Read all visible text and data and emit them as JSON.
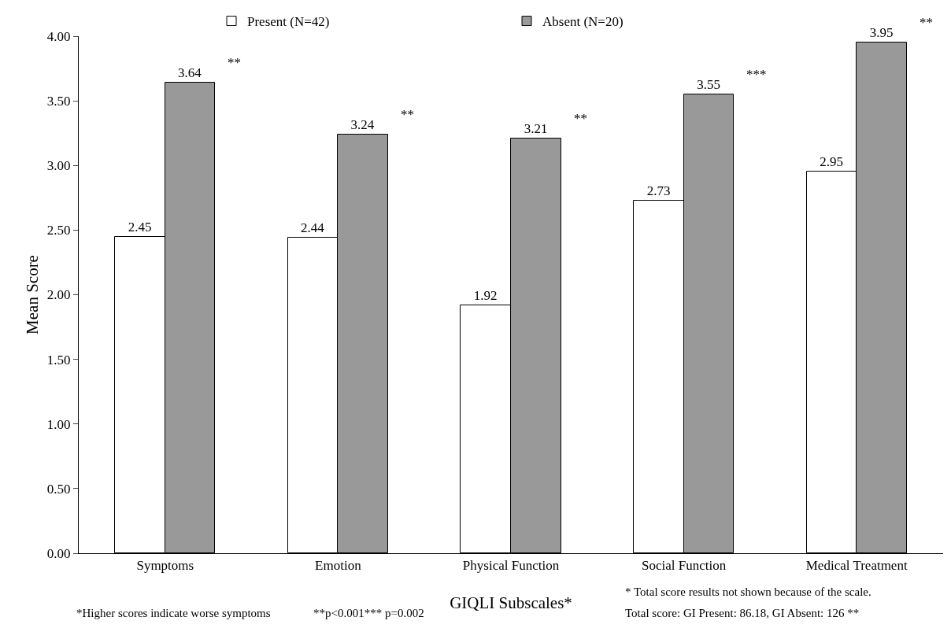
{
  "chart_data": {
    "type": "bar",
    "xlabel": "GIQLI Subscales*",
    "ylabel": "Mean Score",
    "categories": [
      "Symptoms",
      "Emotion",
      "Physical Function",
      "Social Function",
      "Medical Treatment"
    ],
    "series": [
      {
        "name": "Present (N=42)",
        "color": "#ffffff",
        "values": [
          2.45,
          2.44,
          1.92,
          2.73,
          2.95
        ]
      },
      {
        "name": "Absent (N=20)",
        "color": "#999999",
        "values": [
          3.64,
          3.24,
          3.21,
          3.55,
          3.95
        ]
      }
    ],
    "ylim": [
      0,
      4
    ],
    "yticks": [
      {
        "value": 0,
        "label": "0.00"
      },
      {
        "value": 0.5,
        "label": "0.50"
      },
      {
        "value": 1,
        "label": "1.00"
      },
      {
        "value": 1.5,
        "label": "1.50"
      },
      {
        "value": 2,
        "label": "2.00"
      },
      {
        "value": 2.5,
        "label": "2.50"
      },
      {
        "value": 3,
        "label": "3.00"
      },
      {
        "value": 3.5,
        "label": "3.50"
      },
      {
        "value": 4,
        "label": "4.00"
      }
    ],
    "data_labels": true,
    "grid": false,
    "legend": "top",
    "annotations": [
      "**",
      "**",
      "**",
      "***",
      "**",
      "*Higher scores indicate worse symptoms",
      "**p<0.001*** p=0.002",
      "* Total score results not shown because of the scale.",
      "Total score: GI Present: 86.18, GI Absent: 126 **"
    ]
  }
}
